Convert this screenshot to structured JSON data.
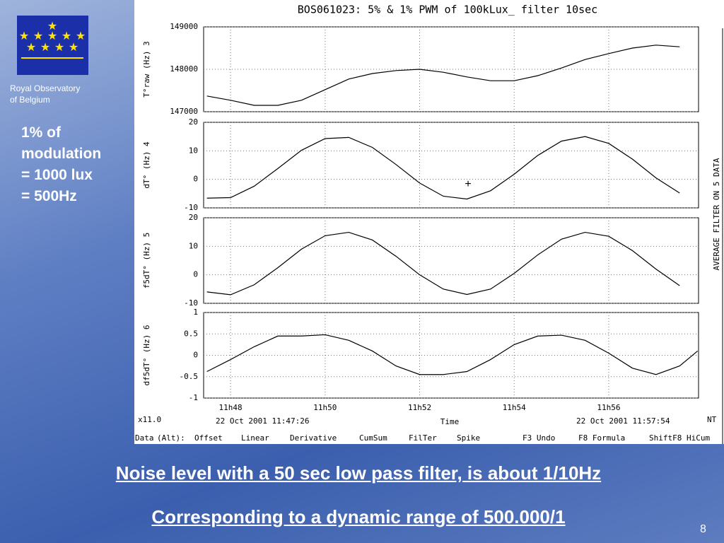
{
  "slide": {
    "institute": [
      "Royal Observatory",
      "of Belgium"
    ],
    "note": [
      "1% of",
      "modulation",
      "= 1000 lux",
      "= 500Hz"
    ],
    "headlines": [
      "Noise level with a 50 sec low pass filter, is about 1/10Hz",
      "Corresponding to a dynamic range of 500.000/1"
    ],
    "page": "8"
  },
  "screen": {
    "side_label": "AVERAGE FILTER ON 5 DATA",
    "zoom": "x11.0",
    "start": "22 Oct 2001 11:47:26",
    "x_label": "Time",
    "end": "22 Oct 2001 11:57:54",
    "mode": "NT",
    "menu": [
      "Data",
      "(Alt):",
      "Offset",
      "Linear",
      "Derivative",
      "CumSum",
      "FilTer",
      "Spike",
      "F3 Undo",
      "F8 Formula",
      "ShiftF8 HiCum"
    ]
  },
  "chart_data": [
    {
      "type": "line",
      "title": "BOS061023:  5% & 1% PWM of 100kLux_ filter 10sec",
      "y_label": "T°raw (Hz) 3",
      "x": [
        47.5,
        48,
        48.5,
        49,
        49.5,
        50,
        50.5,
        51,
        51.5,
        52,
        52.5,
        53,
        53.5,
        54,
        54.5,
        55,
        55.5,
        56,
        56.5,
        57,
        57.5
      ],
      "xlim": [
        47.43,
        57.9
      ],
      "ylim": [
        147000,
        149000
      ],
      "yticks": [
        147000,
        148000,
        149000
      ],
      "series": [
        {
          "color": "#000000",
          "values": [
            147370,
            147270,
            147150,
            147150,
            147270,
            147520,
            147770,
            147900,
            147970,
            148000,
            147930,
            147820,
            147730,
            147730,
            147850,
            148030,
            148230,
            148370,
            148500,
            148570,
            148530
          ]
        }
      ]
    },
    {
      "type": "line",
      "y_label": "dT° (Hz) 4",
      "x": [
        47.5,
        48,
        48.5,
        49,
        49.5,
        50,
        50.5,
        51,
        51.5,
        52,
        52.5,
        53,
        53.5,
        54,
        54.5,
        55,
        55.5,
        56,
        56.5,
        57,
        57.5
      ],
      "xlim": [
        47.43,
        57.9
      ],
      "ylim": [
        -10,
        20
      ],
      "yticks": [
        -10,
        0,
        10,
        20
      ],
      "series": [
        {
          "color": "#000000",
          "values": [
            -6.6,
            -6.4,
            -2.4,
            3.8,
            10.2,
            14.3,
            14.7,
            11.2,
            5.2,
            -1.3,
            -5.9,
            -6.9,
            -4.0,
            1.8,
            8.4,
            13.4,
            15.0,
            12.6,
            7.1,
            0.5,
            -4.8
          ]
        }
      ]
    },
    {
      "type": "line",
      "y_label": "f5dT° (Hz) 5",
      "x": [
        47.5,
        48,
        48.5,
        49,
        49.5,
        50,
        50.5,
        51,
        51.5,
        52,
        52.5,
        53,
        53.5,
        54,
        54.5,
        55,
        55.5,
        56,
        56.5,
        57,
        57.5
      ],
      "xlim": [
        47.43,
        57.9
      ],
      "ylim": [
        -10,
        20
      ],
      "yticks": [
        -10,
        0,
        10,
        20
      ],
      "series": [
        {
          "color": "#000000",
          "values": [
            -6.0,
            -7.0,
            -3.5,
            2.5,
            9.0,
            13.7,
            14.9,
            12.2,
            6.5,
            0.0,
            -5.0,
            -6.9,
            -5.0,
            0.5,
            7.0,
            12.5,
            14.9,
            13.5,
            8.5,
            2.0,
            -3.8
          ]
        }
      ]
    },
    {
      "type": "line",
      "y_label": "df5dT° (Hz) 6",
      "x": [
        47.5,
        48,
        48.5,
        49,
        49.5,
        50,
        50.5,
        51,
        51.5,
        52,
        52.5,
        53,
        53.5,
        54,
        54.5,
        55,
        55.5,
        56,
        56.5,
        57,
        57.5,
        57.88
      ],
      "xlim": [
        47.43,
        57.9
      ],
      "xticks": [
        {
          "value": 48,
          "label": "11h48"
        },
        {
          "value": 50,
          "label": "11h50"
        },
        {
          "value": 52,
          "label": "11h52"
        },
        {
          "value": 54,
          "label": "11h54"
        },
        {
          "value": 56,
          "label": "11h56"
        }
      ],
      "ylim": [
        -1,
        1
      ],
      "yticks": [
        -1,
        -0.5,
        0,
        0.5,
        1
      ],
      "series": [
        {
          "color": "#000000",
          "values": [
            -0.38,
            -0.1,
            0.2,
            0.45,
            0.45,
            0.48,
            0.35,
            0.1,
            -0.25,
            -0.45,
            -0.45,
            -0.38,
            -0.1,
            0.25,
            0.45,
            0.47,
            0.35,
            0.05,
            -0.3,
            -0.45,
            -0.25,
            0.1
          ]
        }
      ]
    }
  ]
}
